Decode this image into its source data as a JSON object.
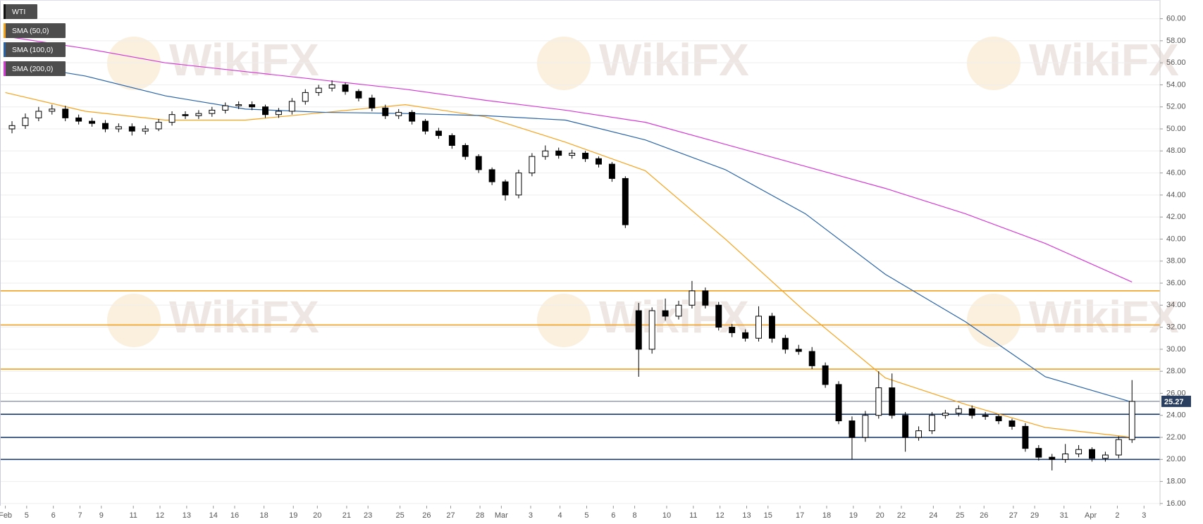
{
  "chart_data": {
    "type": "candlestick",
    "watermark": "WikiFX",
    "legend": "top-left",
    "grid": true,
    "up_color": "#ffffff",
    "down_color": "#000000",
    "xlim": [
      -0.2,
      43.3
    ],
    "ylim": [
      15.8,
      61.7
    ],
    "xticks": [
      {
        "value": 0,
        "label": "Feb"
      },
      {
        "value": 0.8,
        "label": "5"
      },
      {
        "value": 1.8,
        "label": "6"
      },
      {
        "value": 2.8,
        "label": "7"
      },
      {
        "value": 3.6,
        "label": "9"
      },
      {
        "value": 4.8,
        "label": "11"
      },
      {
        "value": 5.8,
        "label": "12"
      },
      {
        "value": 6.8,
        "label": "13"
      },
      {
        "value": 7.8,
        "label": "14"
      },
      {
        "value": 8.6,
        "label": "16"
      },
      {
        "value": 9.7,
        "label": "18"
      },
      {
        "value": 10.8,
        "label": "19"
      },
      {
        "value": 11.7,
        "label": "20"
      },
      {
        "value": 12.8,
        "label": "21"
      },
      {
        "value": 13.6,
        "label": "23"
      },
      {
        "value": 14.8,
        "label": "25"
      },
      {
        "value": 15.8,
        "label": "26"
      },
      {
        "value": 16.7,
        "label": "27"
      },
      {
        "value": 17.8,
        "label": "28"
      },
      {
        "value": 18.6,
        "label": "Mar"
      },
      {
        "value": 19.7,
        "label": "3"
      },
      {
        "value": 20.8,
        "label": "4"
      },
      {
        "value": 21.8,
        "label": "5"
      },
      {
        "value": 22.8,
        "label": "6"
      },
      {
        "value": 23.6,
        "label": "8"
      },
      {
        "value": 24.8,
        "label": "10"
      },
      {
        "value": 25.8,
        "label": "11"
      },
      {
        "value": 26.8,
        "label": "12"
      },
      {
        "value": 27.8,
        "label": "13"
      },
      {
        "value": 28.6,
        "label": "15"
      },
      {
        "value": 29.8,
        "label": "17"
      },
      {
        "value": 30.8,
        "label": "18"
      },
      {
        "value": 31.8,
        "label": "19"
      },
      {
        "value": 32.8,
        "label": "20"
      },
      {
        "value": 33.6,
        "label": "22"
      },
      {
        "value": 34.8,
        "label": "24"
      },
      {
        "value": 35.8,
        "label": "25"
      },
      {
        "value": 36.7,
        "label": "26"
      },
      {
        "value": 37.8,
        "label": "27"
      },
      {
        "value": 38.6,
        "label": "29"
      },
      {
        "value": 39.7,
        "label": "31"
      },
      {
        "value": 40.7,
        "label": "Apr"
      },
      {
        "value": 41.7,
        "label": "2"
      },
      {
        "value": 42.7,
        "label": "3"
      }
    ],
    "yticks": [
      {
        "value": 16,
        "label": "16.00"
      },
      {
        "value": 18,
        "label": "18.00"
      },
      {
        "value": 20,
        "label": "20.00"
      },
      {
        "value": 22,
        "label": "22.00"
      },
      {
        "value": 24,
        "label": "24.00"
      },
      {
        "value": 26,
        "label": "26.00"
      },
      {
        "value": 28,
        "label": "28.00"
      },
      {
        "value": 30,
        "label": "30.00"
      },
      {
        "value": 32,
        "label": "32.00"
      },
      {
        "value": 34,
        "label": "34.00"
      },
      {
        "value": 36,
        "label": "36.00"
      },
      {
        "value": 38,
        "label": "38.00"
      },
      {
        "value": 40,
        "label": "40.00"
      },
      {
        "value": 42,
        "label": "42.00"
      },
      {
        "value": 44,
        "label": "44.00"
      },
      {
        "value": 46,
        "label": "46.00"
      },
      {
        "value": 48,
        "label": "48.00"
      },
      {
        "value": 50,
        "label": "50.00"
      },
      {
        "value": 52,
        "label": "52.00"
      },
      {
        "value": 54,
        "label": "54.00"
      },
      {
        "value": 56,
        "label": "56.00"
      },
      {
        "value": 58,
        "label": "58.00"
      },
      {
        "value": 60,
        "label": "60.00"
      }
    ],
    "hlines": [
      {
        "value": 35.3,
        "color": "#f0a020"
      },
      {
        "value": 32.2,
        "color": "#f0a020"
      },
      {
        "value": 28.2,
        "color": "#f0a020"
      },
      {
        "value": 24.1,
        "color": "#1f3f6e"
      },
      {
        "value": 22.0,
        "color": "#1f3f6e"
      },
      {
        "value": 20.0,
        "color": "#1f3f6e"
      }
    ],
    "x": [
      0.25,
      0.75,
      1.25,
      1.75,
      2.25,
      2.75,
      3.25,
      3.75,
      4.25,
      4.75,
      5.25,
      5.75,
      6.25,
      6.75,
      7.25,
      7.75,
      8.25,
      8.75,
      9.25,
      9.75,
      10.25,
      10.75,
      11.25,
      11.75,
      12.25,
      12.75,
      13.25,
      13.75,
      14.25,
      14.75,
      15.25,
      15.75,
      16.25,
      16.75,
      17.25,
      17.75,
      18.25,
      18.75,
      19.25,
      19.75,
      20.25,
      20.75,
      21.25,
      21.75,
      22.25,
      22.75,
      23.25,
      23.75,
      24.25,
      24.75,
      25.25,
      25.75,
      26.25,
      26.75,
      27.25,
      27.75,
      28.25,
      28.75,
      29.25,
      29.75,
      30.25,
      30.75,
      31.25,
      31.75,
      32.25,
      32.75,
      33.25,
      33.75,
      34.25,
      34.75,
      35.25,
      35.75,
      36.25,
      36.75,
      37.25,
      37.75,
      38.25,
      38.75,
      39.25,
      39.75,
      40.25,
      40.75,
      41.25,
      41.75,
      42.25
    ],
    "series": [
      {
        "name": "WTI",
        "color": "#000000",
        "open": [
          50.0,
          50.3,
          51.0,
          51.6,
          51.8,
          51.0,
          50.7,
          50.5,
          50.0,
          50.2,
          49.8,
          50.0,
          50.6,
          51.3,
          51.2,
          51.4,
          51.7,
          52.1,
          52.2,
          52.0,
          51.3,
          51.6,
          52.5,
          53.3,
          53.7,
          54.0,
          53.4,
          52.8,
          51.9,
          51.2,
          51.5,
          50.7,
          49.8,
          49.4,
          48.5,
          47.5,
          46.3,
          45.2,
          44.0,
          46.0,
          47.5,
          48.0,
          47.6,
          47.8,
          47.3,
          46.8,
          45.5,
          33.5,
          30.0,
          33.5,
          33.0,
          34.0,
          35.3,
          34.0,
          32.0,
          31.5,
          31.0,
          33.0,
          31.0,
          30.0,
          29.8,
          28.5,
          26.8,
          23.5,
          22.0,
          24.0,
          26.5,
          24.0,
          22.0,
          22.6,
          24.0,
          24.2,
          24.6,
          24.0,
          23.9,
          23.5,
          23.0,
          21.0,
          20.2,
          20.0,
          20.5,
          20.9,
          20.1,
          20.4,
          21.8
        ],
        "high": [
          50.7,
          51.4,
          52.0,
          52.2,
          52.1,
          51.3,
          51.0,
          50.8,
          50.5,
          50.5,
          50.3,
          50.9,
          51.6,
          51.6,
          51.7,
          52.0,
          52.4,
          52.5,
          52.5,
          52.2,
          51.9,
          52.8,
          53.6,
          54.0,
          54.4,
          54.2,
          53.6,
          53.1,
          52.2,
          51.8,
          51.7,
          50.9,
          50.1,
          49.6,
          48.7,
          47.7,
          46.5,
          45.4,
          46.3,
          47.8,
          48.5,
          48.3,
          48.1,
          48.0,
          47.5,
          47.0,
          45.7,
          34.2,
          33.8,
          34.6,
          34.4,
          36.2,
          35.6,
          34.3,
          32.3,
          31.8,
          33.9,
          33.3,
          31.3,
          30.4,
          30.2,
          28.8,
          27.1,
          23.9,
          24.4,
          28.0,
          27.8,
          24.3,
          23.0,
          24.3,
          24.5,
          24.9,
          24.9,
          24.3,
          24.1,
          23.7,
          23.3,
          21.3,
          20.5,
          21.4,
          21.3,
          21.1,
          20.7,
          22.1,
          27.2
        ],
        "low": [
          49.6,
          50.0,
          50.7,
          51.3,
          50.7,
          50.4,
          50.2,
          49.7,
          49.7,
          49.4,
          49.5,
          49.8,
          50.3,
          50.9,
          50.9,
          51.1,
          51.4,
          51.8,
          51.7,
          51.0,
          51.0,
          51.3,
          52.2,
          53.0,
          53.4,
          53.1,
          52.5,
          51.6,
          50.9,
          50.9,
          50.4,
          49.5,
          49.1,
          48.2,
          47.2,
          46.0,
          44.9,
          43.5,
          43.7,
          45.7,
          47.2,
          47.3,
          47.3,
          47.0,
          46.5,
          45.2,
          41.0,
          27.5,
          29.6,
          32.6,
          32.7,
          33.7,
          33.7,
          31.7,
          31.1,
          30.7,
          30.7,
          30.6,
          29.6,
          29.5,
          28.2,
          26.5,
          23.2,
          20.0,
          21.6,
          23.7,
          23.7,
          20.7,
          21.7,
          22.3,
          23.7,
          23.9,
          23.7,
          23.6,
          23.2,
          22.7,
          20.7,
          19.9,
          19.0,
          19.7,
          20.2,
          19.8,
          19.8,
          20.1,
          21.5
        ],
        "close": [
          50.3,
          51.0,
          51.6,
          51.8,
          51.0,
          50.7,
          50.5,
          50.0,
          50.2,
          49.8,
          50.0,
          50.6,
          51.3,
          51.2,
          51.4,
          51.7,
          52.1,
          52.2,
          52.0,
          51.3,
          51.6,
          52.5,
          53.3,
          53.7,
          54.0,
          53.4,
          52.8,
          51.9,
          51.2,
          51.5,
          50.7,
          49.8,
          49.4,
          48.5,
          47.5,
          46.3,
          45.2,
          44.0,
          46.0,
          47.5,
          48.0,
          47.6,
          47.8,
          47.3,
          46.8,
          45.5,
          41.3,
          30.0,
          33.5,
          33.0,
          34.0,
          35.3,
          34.0,
          32.0,
          31.5,
          31.0,
          33.0,
          31.0,
          30.0,
          29.8,
          28.5,
          26.8,
          23.5,
          22.0,
          24.0,
          26.5,
          24.0,
          22.0,
          22.6,
          24.0,
          24.2,
          24.6,
          24.0,
          23.9,
          23.5,
          23.0,
          21.0,
          20.2,
          20.0,
          20.5,
          20.9,
          20.1,
          20.4,
          21.8,
          25.27
        ]
      },
      {
        "name": "SMA (50,0)",
        "type": "line",
        "color": "#f7a21b",
        "x": [
          0,
          3,
          6,
          9,
          12,
          15,
          18,
          21,
          24,
          27,
          30,
          33,
          36,
          39,
          42.25
        ],
        "values": [
          53.3,
          51.6,
          50.8,
          50.8,
          51.5,
          52.2,
          51.1,
          48.8,
          46.2,
          40.0,
          33.4,
          27.4,
          25.0,
          22.9,
          22.0
        ]
      },
      {
        "name": "SMA (100,0)",
        "type": "line",
        "color": "#2a64a8",
        "x": [
          0,
          3,
          6,
          9,
          12,
          15,
          18,
          21,
          24,
          27,
          30,
          33,
          36,
          39,
          42.25
        ],
        "values": [
          56.0,
          54.8,
          53.0,
          51.8,
          51.5,
          51.4,
          51.2,
          50.8,
          49.0,
          46.3,
          42.3,
          36.8,
          32.5,
          27.5,
          25.2
        ]
      },
      {
        "name": "SMA (200,0)",
        "type": "line",
        "color": "#d63ad6",
        "x": [
          0,
          3,
          6,
          9,
          12,
          15,
          18,
          21,
          24,
          27,
          30,
          33,
          36,
          39,
          42.25
        ],
        "values": [
          58.4,
          57.3,
          56.0,
          55.2,
          54.4,
          53.6,
          52.6,
          51.7,
          50.6,
          48.6,
          46.6,
          44.6,
          42.3,
          39.6,
          36.1
        ]
      }
    ]
  }
}
